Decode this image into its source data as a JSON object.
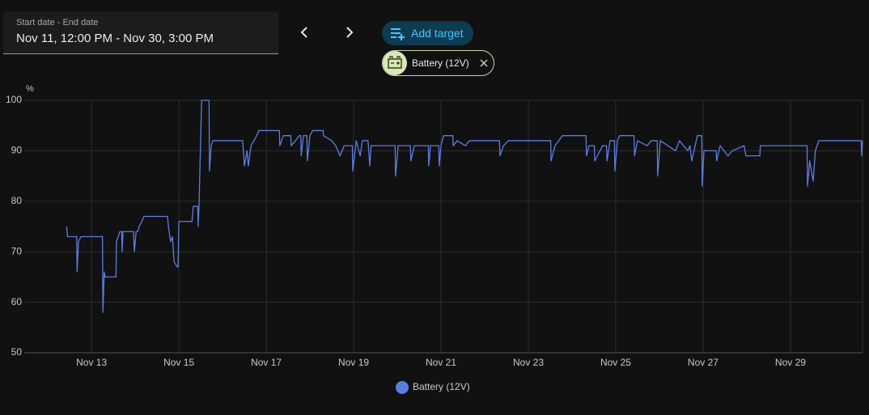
{
  "date_picker": {
    "label": "Start date - End date",
    "value": "Nov 11, 12:00 PM - Nov 30, 3:00 PM"
  },
  "add_target": "Add target",
  "targets": [
    {
      "label": "Battery (12V)"
    }
  ],
  "chart_data": {
    "type": "line",
    "y_unit": "%",
    "x": [
      12.43,
      12.45,
      12.66,
      12.67,
      12.7,
      12.76,
      13.25,
      13.26,
      13.29,
      13.31,
      13.56,
      13.57,
      13.65,
      13.69,
      13.7,
      13.72,
      13.96,
      13.98,
      14.02,
      14.06,
      14.09,
      14.15,
      14.2,
      14.74,
      14.76,
      14.81,
      14.85,
      14.89,
      14.96,
      14.98,
      15.0,
      15.3,
      15.33,
      15.43,
      15.44,
      15.46,
      15.52,
      15.69,
      15.7,
      15.74,
      15.78,
      16.46,
      16.5,
      16.56,
      16.59,
      16.65,
      16.78,
      16.83,
      17.3,
      17.31,
      17.39,
      17.56,
      17.57,
      17.76,
      17.79,
      17.8,
      17.85,
      17.93,
      17.94,
      18.0,
      18.06,
      18.3,
      18.31,
      18.5,
      18.59,
      18.69,
      18.78,
      18.97,
      18.98,
      19.06,
      19.15,
      19.2,
      19.33,
      19.37,
      19.4,
      19.95,
      19.96,
      20.02,
      20.3,
      20.31,
      20.39,
      20.71,
      20.72,
      20.76,
      20.95,
      20.96,
      21.0,
      21.06,
      21.27,
      21.28,
      21.37,
      21.56,
      21.65,
      22.34,
      22.35,
      22.43,
      22.54,
      23.51,
      23.52,
      23.61,
      23.78,
      24.32,
      24.33,
      24.39,
      24.51,
      24.52,
      24.7,
      24.79,
      24.8,
      24.87,
      24.97,
      24.98,
      25.04,
      25.09,
      25.42,
      25.43,
      25.5,
      25.72,
      25.81,
      25.95,
      25.96,
      26.02,
      26.37,
      26.46,
      26.65,
      26.7,
      26.74,
      26.87,
      26.97,
      26.98,
      27.02,
      27.3,
      27.31,
      27.39,
      27.57,
      27.67,
      27.94,
      27.98,
      28.3,
      28.31,
      29.38,
      29.39,
      29.44,
      29.52,
      29.57,
      29.65,
      30.62,
      30.63,
      30.65
    ],
    "series": [
      {
        "name": "Battery (12V)",
        "color": "#5b7fe0",
        "values": [
          75,
          73,
          73,
          66,
          72,
          73,
          73,
          58,
          66,
          65,
          65,
          72,
          74,
          74,
          70,
          74,
          74,
          70,
          74,
          74,
          75,
          76,
          77,
          77,
          75,
          72,
          73,
          68,
          67,
          67,
          76,
          76,
          79,
          79,
          75,
          79,
          100,
          100,
          86,
          91,
          92,
          92,
          87,
          90,
          87,
          91,
          93,
          94,
          94,
          91,
          93,
          93,
          91,
          93,
          93,
          89,
          93,
          93,
          88,
          93,
          94,
          94,
          93,
          92,
          91,
          89,
          91,
          91,
          86,
          92,
          89,
          92,
          92,
          87,
          91,
          91,
          85,
          91,
          91,
          88,
          91,
          91,
          87,
          91,
          91,
          87,
          91,
          93,
          93,
          91,
          92,
          91,
          92,
          92,
          89,
          91,
          92,
          92,
          88,
          91,
          93,
          93,
          89,
          91,
          91,
          88,
          91,
          91,
          88,
          92,
          92,
          86,
          92,
          93,
          93,
          89,
          92,
          91,
          92,
          92,
          85,
          92,
          90,
          92,
          90,
          91,
          88,
          93,
          93,
          83,
          90,
          90,
          88,
          91,
          89,
          90,
          91,
          89,
          89,
          91,
          91,
          83,
          88,
          84,
          90,
          92,
          92,
          89,
          92
        ]
      }
    ],
    "xlim": [
      11.46,
      30.65
    ],
    "xticks": [
      {
        "value": 13,
        "label": "Nov 13"
      },
      {
        "value": 15,
        "label": "Nov 15"
      },
      {
        "value": 17,
        "label": "Nov 17"
      },
      {
        "value": 19,
        "label": "Nov 19"
      },
      {
        "value": 21,
        "label": "Nov 21"
      },
      {
        "value": 23,
        "label": "Nov 23"
      },
      {
        "value": 25,
        "label": "Nov 25"
      },
      {
        "value": 27,
        "label": "Nov 27"
      },
      {
        "value": 29,
        "label": "Nov 29"
      }
    ],
    "ylim": [
      50,
      100
    ],
    "yticks": [
      50,
      60,
      70,
      80,
      90,
      100
    ],
    "grid": true
  }
}
